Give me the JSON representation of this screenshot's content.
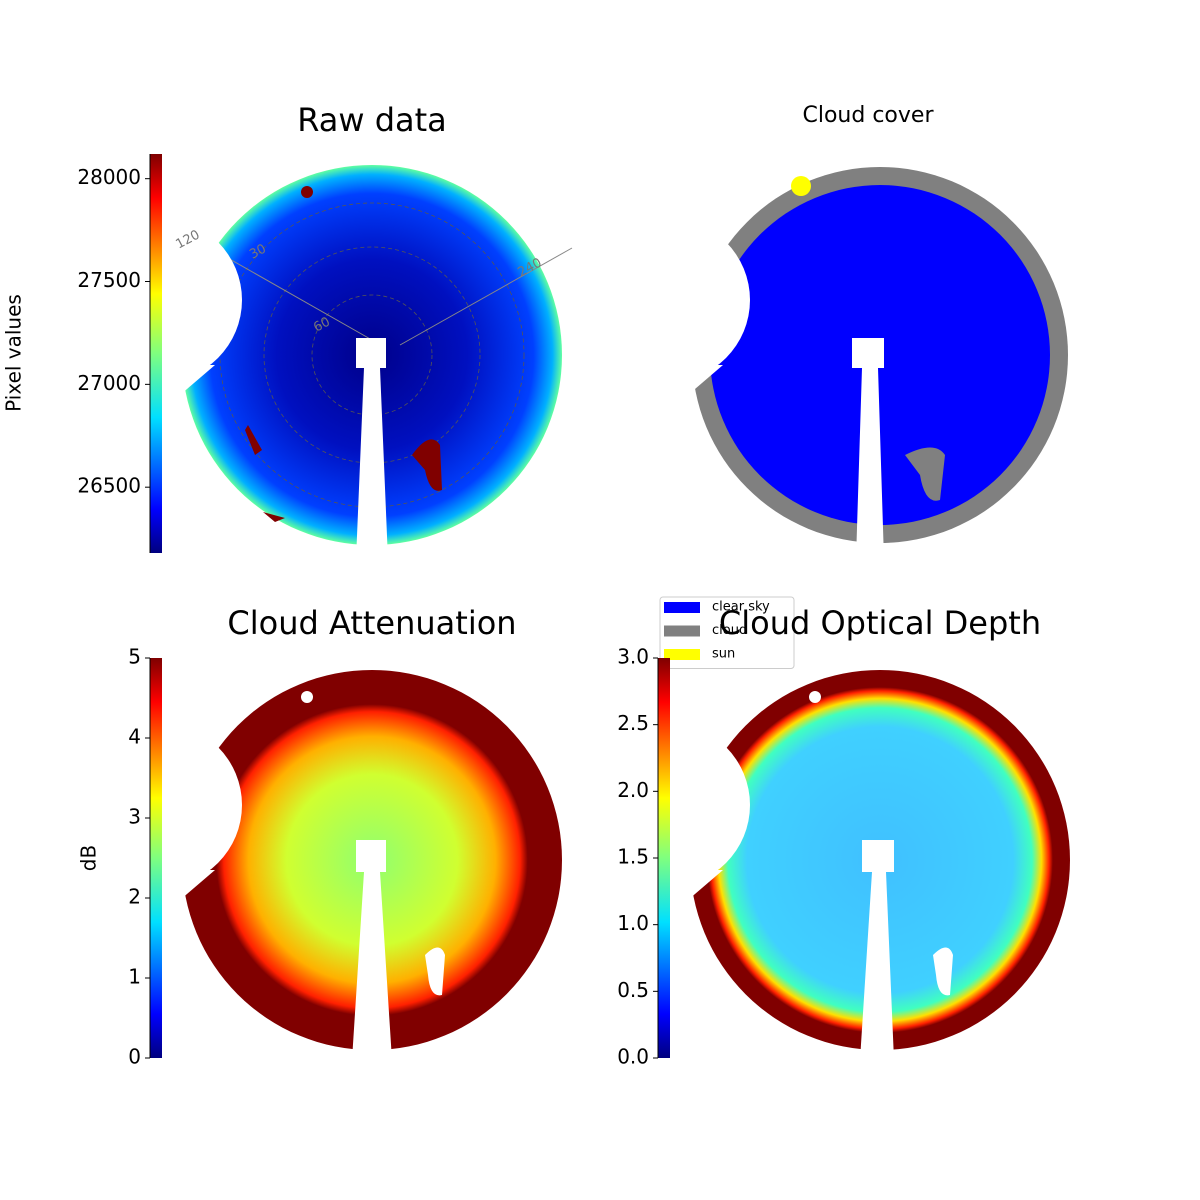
{
  "chart_data": [
    {
      "type": "image",
      "title": "Raw data",
      "colorbar_label": "Pixel values",
      "colormap": "jet",
      "ylim": [
        26180,
        28120
      ],
      "yticks": [
        26500,
        27000,
        27500,
        28000
      ],
      "annotations": [
        "120",
        "240",
        "30",
        "60"
      ]
    },
    {
      "type": "image",
      "title": "Cloud cover",
      "legend": {
        "labels": [
          "clear sky",
          "cloud",
          "sun"
        ],
        "colors": [
          "#0000ff",
          "#808080",
          "#ffff00"
        ],
        "position": "lower left"
      }
    },
    {
      "type": "image",
      "title": "Cloud Attenuation",
      "colorbar_label": "dB",
      "colormap": "jet",
      "ylim": [
        0,
        5
      ],
      "yticks": [
        0,
        1,
        2,
        3,
        4,
        5
      ]
    },
    {
      "type": "image",
      "title": "Cloud Optical Depth",
      "colormap": "jet",
      "ylim": [
        0,
        3
      ],
      "yticks": [
        {
          "value": 0,
          "label": "0.0"
        },
        0.5,
        {
          "value": 1,
          "label": "1.0"
        },
        1.5,
        {
          "value": 2,
          "label": "2.0"
        },
        2.5,
        {
          "value": 3,
          "label": "3.0"
        }
      ]
    }
  ]
}
